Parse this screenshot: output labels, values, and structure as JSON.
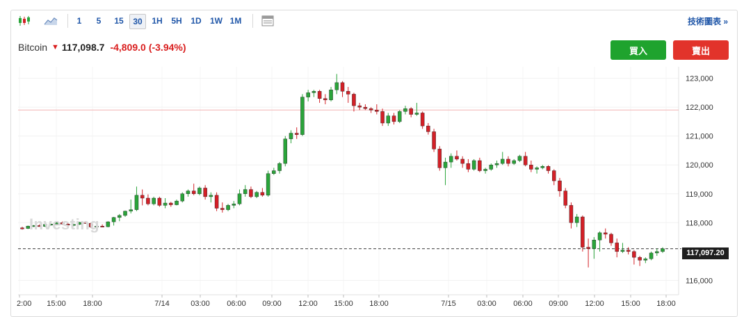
{
  "toolbar": {
    "timeframes": [
      "1",
      "5",
      "15",
      "30",
      "1H",
      "5H",
      "1D",
      "1W",
      "1M"
    ],
    "active_timeframe": "30",
    "tech_chart_link": "技術圖表 »",
    "icons": [
      "candlestick-icon",
      "area-chart-icon",
      "table-icon"
    ]
  },
  "quote": {
    "name": "Bitcoin",
    "direction": "down",
    "price": "117,098.7",
    "change": "-4,809.0",
    "change_pct": "(-3.94%)"
  },
  "actions": {
    "buy_label": "買入",
    "sell_label": "賣出"
  },
  "watermark": "Investing",
  "current_price_tag": "117,097.20",
  "colors": {
    "up": "#2aa43a",
    "down": "#d32027",
    "buy": "#1fa32e",
    "sell": "#e2332b",
    "link": "#1f56a8",
    "ref_line": "#f2b2b2"
  },
  "chart_data": {
    "type": "candlestick",
    "y_ticks": [
      "123,000",
      "122,000",
      "121,000",
      "120,000",
      "119,000",
      "118,000",
      "116,000"
    ],
    "x_ticks": [
      "2:00",
      "15:00",
      "18:00",
      "7/14",
      "03:00",
      "06:00",
      "09:00",
      "12:00",
      "15:00",
      "18:00",
      "7/15",
      "03:00",
      "06:00",
      "09:00",
      "12:00",
      "15:00",
      "18:00"
    ],
    "ylim": [
      115600,
      123400
    ],
    "reference_line": 121900,
    "last_price": 117097.2,
    "candles": [
      [
        117820,
        117860,
        117760,
        117800
      ],
      [
        117800,
        117900,
        117780,
        117880
      ],
      [
        117880,
        117920,
        117850,
        117900
      ],
      [
        117900,
        117940,
        117860,
        117870
      ],
      [
        117870,
        117950,
        117850,
        117940
      ],
      [
        117940,
        117980,
        117900,
        117950
      ],
      [
        117950,
        118020,
        117920,
        118000
      ],
      [
        118000,
        118040,
        117930,
        117950
      ],
      [
        117950,
        118000,
        117900,
        117920
      ],
      [
        117920,
        117960,
        117880,
        117940
      ],
      [
        117940,
        118030,
        117920,
        118010
      ],
      [
        118010,
        118050,
        117960,
        117980
      ],
      [
        117980,
        118000,
        117820,
        117850
      ],
      [
        117850,
        117900,
        117820,
        117880
      ],
      [
        117880,
        117940,
        117840,
        117860
      ],
      [
        117860,
        118050,
        117840,
        118030
      ],
      [
        118030,
        118200,
        117900,
        118180
      ],
      [
        118180,
        118300,
        118050,
        118250
      ],
      [
        118250,
        118420,
        118200,
        118400
      ],
      [
        118400,
        118800,
        118320,
        118450
      ],
      [
        118450,
        119250,
        118400,
        118950
      ],
      [
        118950,
        119150,
        118600,
        118850
      ],
      [
        118850,
        118980,
        118600,
        118650
      ],
      [
        118650,
        118900,
        118600,
        118850
      ],
      [
        118850,
        118900,
        118550,
        118600
      ],
      [
        118600,
        118850,
        118500,
        118680
      ],
      [
        118680,
        118720,
        118550,
        118620
      ],
      [
        118620,
        118800,
        118600,
        118750
      ],
      [
        118750,
        119050,
        118700,
        119000
      ],
      [
        119000,
        119150,
        118900,
        119100
      ],
      [
        119100,
        119350,
        118950,
        119000
      ],
      [
        119000,
        119250,
        118950,
        119200
      ],
      [
        119200,
        119300,
        118800,
        118900
      ],
      [
        118900,
        119050,
        118700,
        118950
      ],
      [
        118950,
        119050,
        118400,
        118500
      ],
      [
        118500,
        118700,
        118350,
        118450
      ],
      [
        118450,
        118650,
        118400,
        118600
      ],
      [
        118600,
        118750,
        118500,
        118650
      ],
      [
        118650,
        119150,
        118600,
        119000
      ],
      [
        119000,
        119300,
        118900,
        119150
      ],
      [
        119150,
        119250,
        118850,
        118900
      ],
      [
        118900,
        119100,
        118850,
        119050
      ],
      [
        119050,
        119200,
        118900,
        118950
      ],
      [
        118950,
        119800,
        118900,
        119700
      ],
      [
        119700,
        119900,
        119650,
        119800
      ],
      [
        119800,
        120100,
        119700,
        120050
      ],
      [
        120050,
        121000,
        119950,
        120900
      ],
      [
        120900,
        121200,
        120750,
        121100
      ],
      [
        121100,
        121300,
        120900,
        121050
      ],
      [
        121050,
        122450,
        121000,
        122350
      ],
      [
        122350,
        122600,
        122200,
        122500
      ],
      [
        122500,
        122600,
        122350,
        122550
      ],
      [
        122550,
        122600,
        122150,
        122300
      ],
      [
        122300,
        122450,
        122100,
        122250
      ],
      [
        122250,
        122700,
        122200,
        122600
      ],
      [
        122600,
        123150,
        122450,
        122850
      ],
      [
        122850,
        122900,
        122350,
        122550
      ],
      [
        122550,
        122700,
        122150,
        122450
      ],
      [
        122450,
        122500,
        121850,
        122050
      ],
      [
        122050,
        122150,
        121900,
        122000
      ],
      [
        122000,
        122100,
        121900,
        121950
      ],
      [
        121950,
        122000,
        121800,
        121900
      ],
      [
        121900,
        122100,
        121750,
        121850
      ],
      [
        121850,
        121950,
        121350,
        121450
      ],
      [
        121450,
        121800,
        121350,
        121700
      ],
      [
        121700,
        121800,
        121400,
        121500
      ],
      [
        121500,
        121900,
        121450,
        121850
      ],
      [
        121850,
        122050,
        121750,
        121950
      ],
      [
        121950,
        122000,
        121650,
        121750
      ],
      [
        121750,
        122150,
        121700,
        121800
      ],
      [
        121800,
        121850,
        121250,
        121350
      ],
      [
        121350,
        121450,
        121050,
        121150
      ],
      [
        121150,
        121250,
        120450,
        120550
      ],
      [
        120550,
        120650,
        119800,
        119900
      ],
      [
        119900,
        120250,
        119300,
        120100
      ],
      [
        120100,
        120400,
        119900,
        120300
      ],
      [
        120300,
        120500,
        120150,
        120200
      ],
      [
        120200,
        120300,
        119900,
        120050
      ],
      [
        120050,
        120200,
        119750,
        119850
      ],
      [
        119850,
        120200,
        119800,
        120150
      ],
      [
        120150,
        120250,
        119750,
        119800
      ],
      [
        119800,
        119900,
        119700,
        119850
      ],
      [
        119850,
        120050,
        119800,
        120000
      ],
      [
        120000,
        120150,
        119900,
        120050
      ],
      [
        120050,
        120450,
        120000,
        120200
      ],
      [
        120200,
        120300,
        119950,
        120050
      ],
      [
        120050,
        120200,
        120000,
        120150
      ],
      [
        120150,
        120350,
        120100,
        120300
      ],
      [
        120300,
        120450,
        119950,
        120000
      ],
      [
        120000,
        120150,
        119750,
        119850
      ],
      [
        119850,
        119950,
        119700,
        119900
      ],
      [
        119900,
        120000,
        119850,
        119950
      ],
      [
        119950,
        119990,
        119700,
        119800
      ],
      [
        119800,
        119850,
        119300,
        119450
      ],
      [
        119450,
        119550,
        118900,
        119100
      ],
      [
        119100,
        119200,
        118500,
        118600
      ],
      [
        118600,
        118700,
        117800,
        118000
      ],
      [
        118000,
        118300,
        117850,
        118200
      ],
      [
        118200,
        118250,
        117000,
        117150
      ],
      [
        117150,
        117450,
        116450,
        117100
      ],
      [
        117100,
        117500,
        116750,
        117400
      ],
      [
        117400,
        117700,
        117000,
        117650
      ],
      [
        117650,
        117800,
        117450,
        117600
      ],
      [
        117600,
        117650,
        117200,
        117300
      ],
      [
        117300,
        117450,
        116800,
        117000
      ],
      [
        117000,
        117300,
        116950,
        117050
      ],
      [
        117050,
        117150,
        116900,
        117000
      ],
      [
        117000,
        117050,
        116550,
        116800
      ],
      [
        116800,
        116850,
        116500,
        116700
      ],
      [
        116700,
        116800,
        116600,
        116750
      ],
      [
        116750,
        117000,
        116700,
        116950
      ],
      [
        116950,
        117100,
        116850,
        117000
      ],
      [
        117000,
        117150,
        116950,
        117097
      ]
    ]
  }
}
